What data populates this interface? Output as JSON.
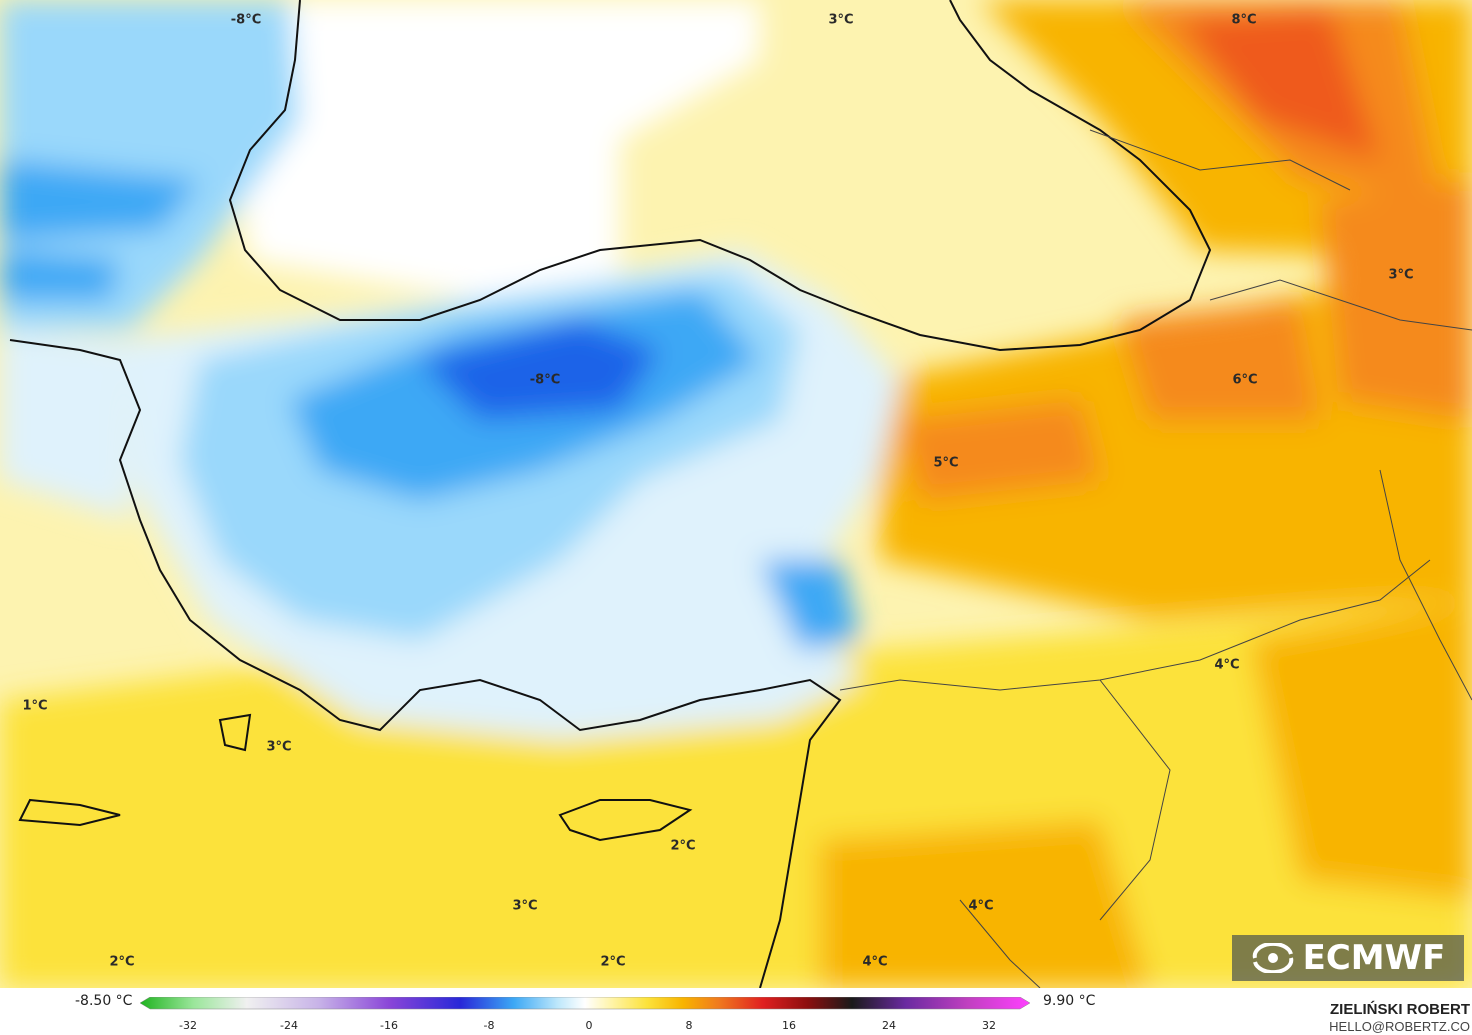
{
  "map": {
    "labels": [
      "-8°C",
      "-8°C",
      "3°C",
      "8°C",
      "3°C",
      "6°C",
      "5°C",
      "4°C",
      "1°C",
      "3°C",
      "2°C",
      "3°C",
      "2°C",
      "2°C",
      "4°C",
      "4°C"
    ],
    "colors": {
      "deep_blue": "#1e64e8",
      "blue": "#3ca8f5",
      "light_blue": "#9ad8fb",
      "pale_blue": "#dff2fc",
      "pale_yellow": "#fdf3b0",
      "yellow": "#fce23a",
      "orange": "#f8b400",
      "dark_orange": "#f58a1c",
      "red_orange": "#ef5a1e"
    }
  },
  "legend": {
    "min_label": "-8.50 °C",
    "max_label": "9.90 °C",
    "ticks": [
      "-32",
      "-24",
      "-16",
      "-8",
      "0",
      "8",
      "16",
      "24",
      "32"
    ],
    "gradient_colors": [
      "#1fb31f",
      "#9ae69a",
      "#f0f0f0",
      "#c8b4e8",
      "#8a46d8",
      "#2828d8",
      "#3ca8f5",
      "#bfe8fb",
      "#ffffff",
      "#fff4a8",
      "#fce23a",
      "#f8b400",
      "#f07a1e",
      "#e02020",
      "#8c0f0f",
      "#1a1a1a",
      "#6a2aa0",
      "#c040c0",
      "#ff40ff"
    ]
  },
  "brand": {
    "logo_text": "ECMWF"
  },
  "author": {
    "name": "ZIELIŃSKI ROBERT",
    "email": "HELLO@ROBERTZ.CO"
  }
}
